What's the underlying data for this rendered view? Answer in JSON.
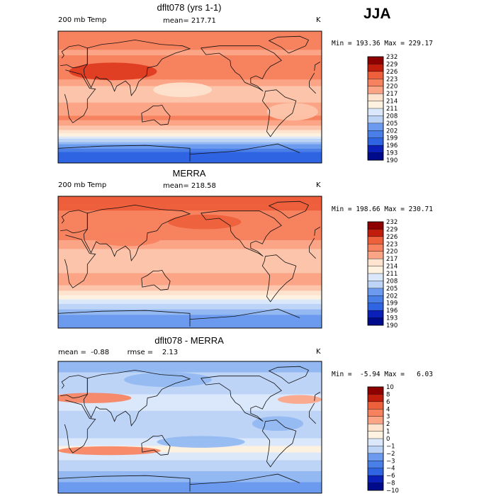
{
  "season": "JJA",
  "colors": {
    "warm": [
      "#fdf1e0",
      "#fee3cf",
      "#fcc5ab",
      "#fca486",
      "#f7825f",
      "#ee5f3c",
      "#de3a1f",
      "#c01d0d",
      "#8e0000"
    ],
    "cool": [
      "#dbe8fb",
      "#bdd4f7",
      "#93b8f2",
      "#6b9aee",
      "#4a7fe8",
      "#2f64e2",
      "#1640d8",
      "#0a20b8",
      "#000b8c"
    ],
    "land": "#111111",
    "frame": "#000000"
  },
  "chart_data": [
    {
      "type": "heatmap",
      "title": "dflt078 (yrs 1-1)",
      "field_label": "200 mb Temp",
      "stat_text": "mean= 217.71",
      "units": "K",
      "minmax_text": "Min = 193.36 Max = 229.17",
      "min": 193.36,
      "max": 229.17,
      "mean": 217.71,
      "colorbar_levels": [
        "232",
        "229",
        "226",
        "223",
        "220",
        "217",
        "214",
        "211",
        "208",
        "205",
        "202",
        "199",
        "196",
        "193",
        "190"
      ],
      "level_values": [
        232,
        229,
        226,
        223,
        220,
        217,
        214,
        211,
        208,
        205,
        202,
        199,
        196,
        193,
        190
      ],
      "mid_value": 211,
      "lat_range": [
        -90,
        90
      ],
      "lon_range": [
        0,
        360
      ],
      "zonal_profile": [
        {
          "lat": 90,
          "v": 226
        },
        {
          "lat": 75,
          "v": 225
        },
        {
          "lat": 60,
          "v": 222
        },
        {
          "lat": 45,
          "v": 226
        },
        {
          "lat": 30,
          "v": 225
        },
        {
          "lat": 15,
          "v": 220
        },
        {
          "lat": 0,
          "v": 219
        },
        {
          "lat": -15,
          "v": 221
        },
        {
          "lat": -30,
          "v": 224
        },
        {
          "lat": -45,
          "v": 217
        },
        {
          "lat": -55,
          "v": 210
        },
        {
          "lat": -65,
          "v": 202
        },
        {
          "lat": -75,
          "v": 196
        },
        {
          "lat": -90,
          "v": 193
        }
      ],
      "anomalies": [
        {
          "lon": 75,
          "lat": 35,
          "rlon": 60,
          "rlat": 12,
          "v": 5
        },
        {
          "lon": 170,
          "lat": 10,
          "rlon": 40,
          "rlat": 10,
          "v": -3
        },
        {
          "lon": 320,
          "lat": -20,
          "rlon": 35,
          "rlat": 12,
          "v": -5
        }
      ]
    },
    {
      "type": "heatmap",
      "title": "MERRA",
      "field_label": "200 mb Temp",
      "stat_text": "mean= 218.58",
      "units": "K",
      "minmax_text": "Min = 198.66 Max = 230.71",
      "min": 198.66,
      "max": 230.71,
      "mean": 218.58,
      "colorbar_levels": [
        "232",
        "229",
        "226",
        "223",
        "220",
        "217",
        "214",
        "211",
        "208",
        "205",
        "202",
        "199",
        "196",
        "193",
        "190"
      ],
      "level_values": [
        232,
        229,
        226,
        223,
        220,
        217,
        214,
        211,
        208,
        205,
        202,
        199,
        196,
        193,
        190
      ],
      "mid_value": 211,
      "lat_range": [
        -90,
        90
      ],
      "lon_range": [
        0,
        360
      ],
      "zonal_profile": [
        {
          "lat": 90,
          "v": 228
        },
        {
          "lat": 75,
          "v": 227
        },
        {
          "lat": 60,
          "v": 224
        },
        {
          "lat": 45,
          "v": 225
        },
        {
          "lat": 30,
          "v": 223
        },
        {
          "lat": 15,
          "v": 219
        },
        {
          "lat": 0,
          "v": 218
        },
        {
          "lat": -15,
          "v": 220
        },
        {
          "lat": -30,
          "v": 221
        },
        {
          "lat": -45,
          "v": 214
        },
        {
          "lat": -55,
          "v": 209
        },
        {
          "lat": -65,
          "v": 205
        },
        {
          "lat": -75,
          "v": 201
        },
        {
          "lat": -90,
          "v": 199
        }
      ],
      "anomalies": [
        {
          "lon": 95,
          "lat": 32,
          "rlon": 45,
          "rlat": 10,
          "v": 2
        },
        {
          "lon": 200,
          "lat": 55,
          "rlon": 50,
          "rlat": 10,
          "v": 2
        }
      ]
    },
    {
      "type": "heatmap",
      "title": "dflt078 - MERRA",
      "field_label": "",
      "stat_text": "mean =  -0.88        rmse =    2.13",
      "units": "K",
      "minmax_text": "Min =  -5.94 Max =   6.03",
      "min": -5.94,
      "max": 6.03,
      "mean": -0.88,
      "rmse": 2.13,
      "colorbar_levels": [
        "10",
        "8",
        "6",
        "4",
        "3",
        "2",
        "1",
        "0",
        "−1",
        "−2",
        "−3",
        "−4",
        "−6",
        "−8",
        "−10"
      ],
      "level_values": [
        10,
        8,
        6,
        4,
        3,
        2,
        1,
        0,
        -1,
        -2,
        -3,
        -4,
        -6,
        -8,
        -10
      ],
      "mid_value": 0,
      "lat_range": [
        -90,
        90
      ],
      "lon_range": [
        0,
        360
      ],
      "zonal_profile": [
        {
          "lat": 90,
          "v": -2.5
        },
        {
          "lat": 75,
          "v": -2
        },
        {
          "lat": 60,
          "v": -1.5
        },
        {
          "lat": 45,
          "v": -1
        },
        {
          "lat": 30,
          "v": -0.5
        },
        {
          "lat": 15,
          "v": -1.5
        },
        {
          "lat": 0,
          "v": -1.5
        },
        {
          "lat": -15,
          "v": -1
        },
        {
          "lat": -30,
          "v": 0.5
        },
        {
          "lat": -45,
          "v": -1
        },
        {
          "lat": -60,
          "v": -2
        },
        {
          "lat": -75,
          "v": -3
        },
        {
          "lat": -90,
          "v": -3.5
        }
      ],
      "anomalies": [
        {
          "lon": 45,
          "lat": 40,
          "rlon": 55,
          "rlat": 7,
          "v": 4.5
        },
        {
          "lon": 330,
          "lat": 38,
          "rlon": 30,
          "rlat": 6,
          "v": 3.5
        },
        {
          "lon": 70,
          "lat": -32,
          "rlon": 70,
          "rlat": 6,
          "v": 5.5
        },
        {
          "lon": 195,
          "lat": -20,
          "rlon": 60,
          "rlat": 8,
          "v": -3
        },
        {
          "lon": 150,
          "lat": 65,
          "rlon": 60,
          "rlat": 10,
          "v": -2.5
        },
        {
          "lon": 300,
          "lat": 5,
          "rlon": 35,
          "rlat": 10,
          "v": -2.5
        }
      ]
    }
  ]
}
